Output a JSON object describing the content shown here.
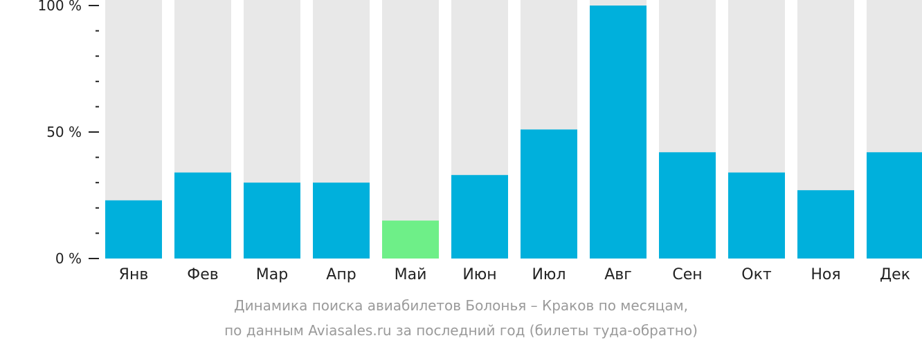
{
  "chart_data": {
    "type": "bar",
    "categories": [
      "Янв",
      "Фев",
      "Мар",
      "Апр",
      "Май",
      "Июн",
      "Июл",
      "Авг",
      "Сен",
      "Окт",
      "Ноя",
      "Дек"
    ],
    "values": [
      23,
      34,
      30,
      30,
      15,
      33,
      51,
      100,
      42,
      34,
      27,
      42
    ],
    "highlight_index": 4,
    "ylim": [
      0,
      100
    ],
    "yticks": [
      {
        "value": 0,
        "label": "0 %"
      },
      {
        "value": 50,
        "label": "50 %"
      },
      {
        "value": 100,
        "label": "100 %"
      }
    ],
    "minor_tick_step": 10,
    "colors": {
      "bar": "#00b0dc",
      "highlight": "#6eef88",
      "track": "#e8e8e8",
      "tick_label": "#222222",
      "caption": "#9a9a9a"
    },
    "caption": {
      "line1": "Динамика поиска авиабилетов Болонья – Краков по месяцам,",
      "line2": "по данным Aviasales.ru за последний год (билеты туда-обратно)"
    }
  }
}
